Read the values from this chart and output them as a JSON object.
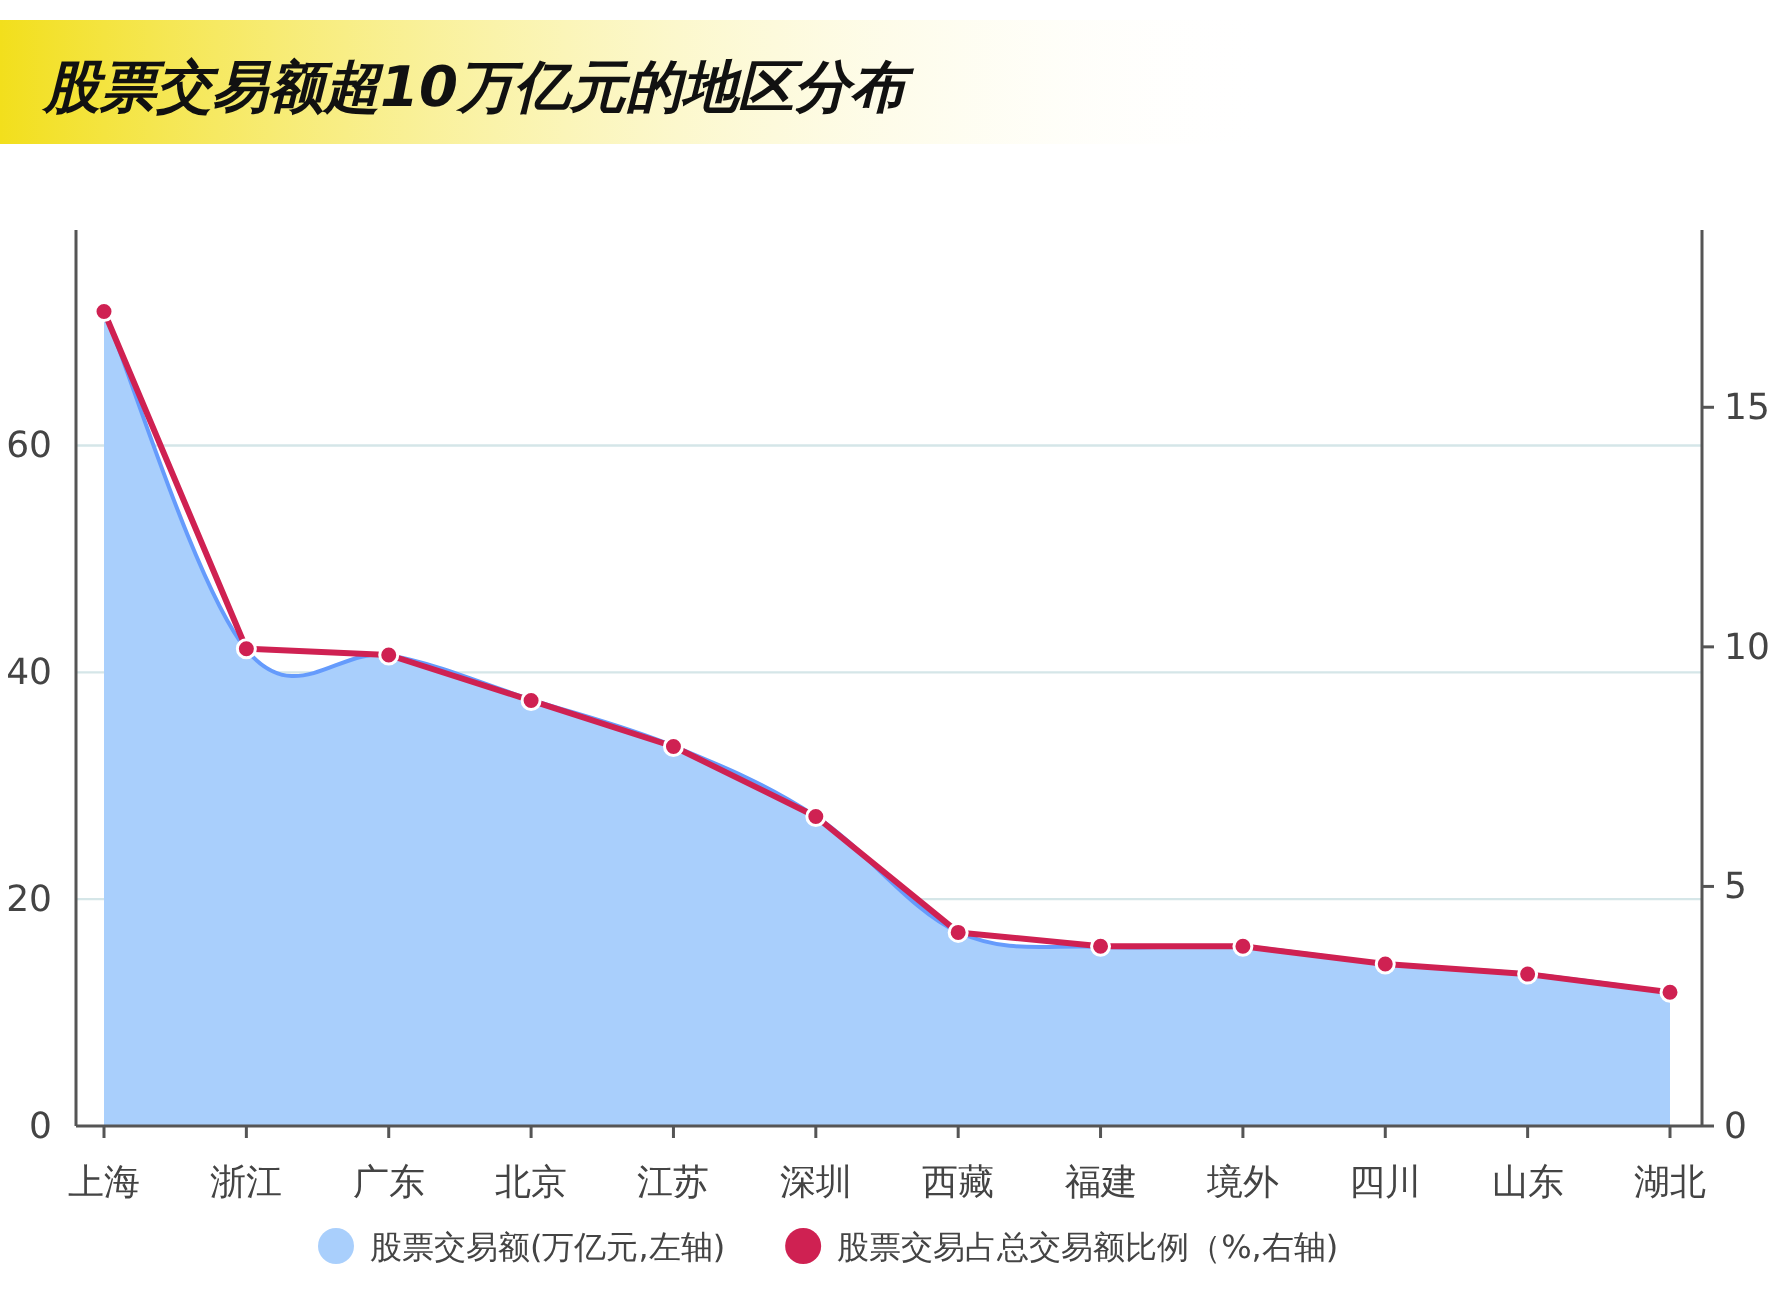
{
  "chart_data": {
    "type": "line",
    "title": "股票交易额超10万亿元的地区分布",
    "categories": [
      "上海",
      "浙江",
      "广东",
      "北京",
      "江苏",
      "深圳",
      "西藏",
      "福建",
      "境外",
      "四川",
      "山东",
      "湖北"
    ],
    "series": [
      {
        "name": "股票交易额(万亿元,左轴)",
        "type": "area",
        "color": "#a9cffc",
        "values": [
          72,
          42,
          41.5,
          37.6,
          33.5,
          27.3,
          17.1,
          15.8,
          15.8,
          14.3,
          13.4,
          11.8
        ]
      },
      {
        "name": "股票交易占总交易额比例（%,右轴)",
        "axis": "y2",
        "marker": "circle",
        "color": "#cf2152",
        "values": [
          17.0,
          9.96,
          9.83,
          8.88,
          7.92,
          6.46,
          4.04,
          3.75,
          3.75,
          3.38,
          3.17,
          2.79
        ]
      }
    ],
    "ylim": [
      0,
      79
    ],
    "yticks": [
      0,
      20,
      40,
      60
    ],
    "y2lim": [
      0,
      18.7
    ],
    "y2ticks": [
      0,
      5,
      10,
      15
    ],
    "grid": "y",
    "legend": "bottom"
  }
}
